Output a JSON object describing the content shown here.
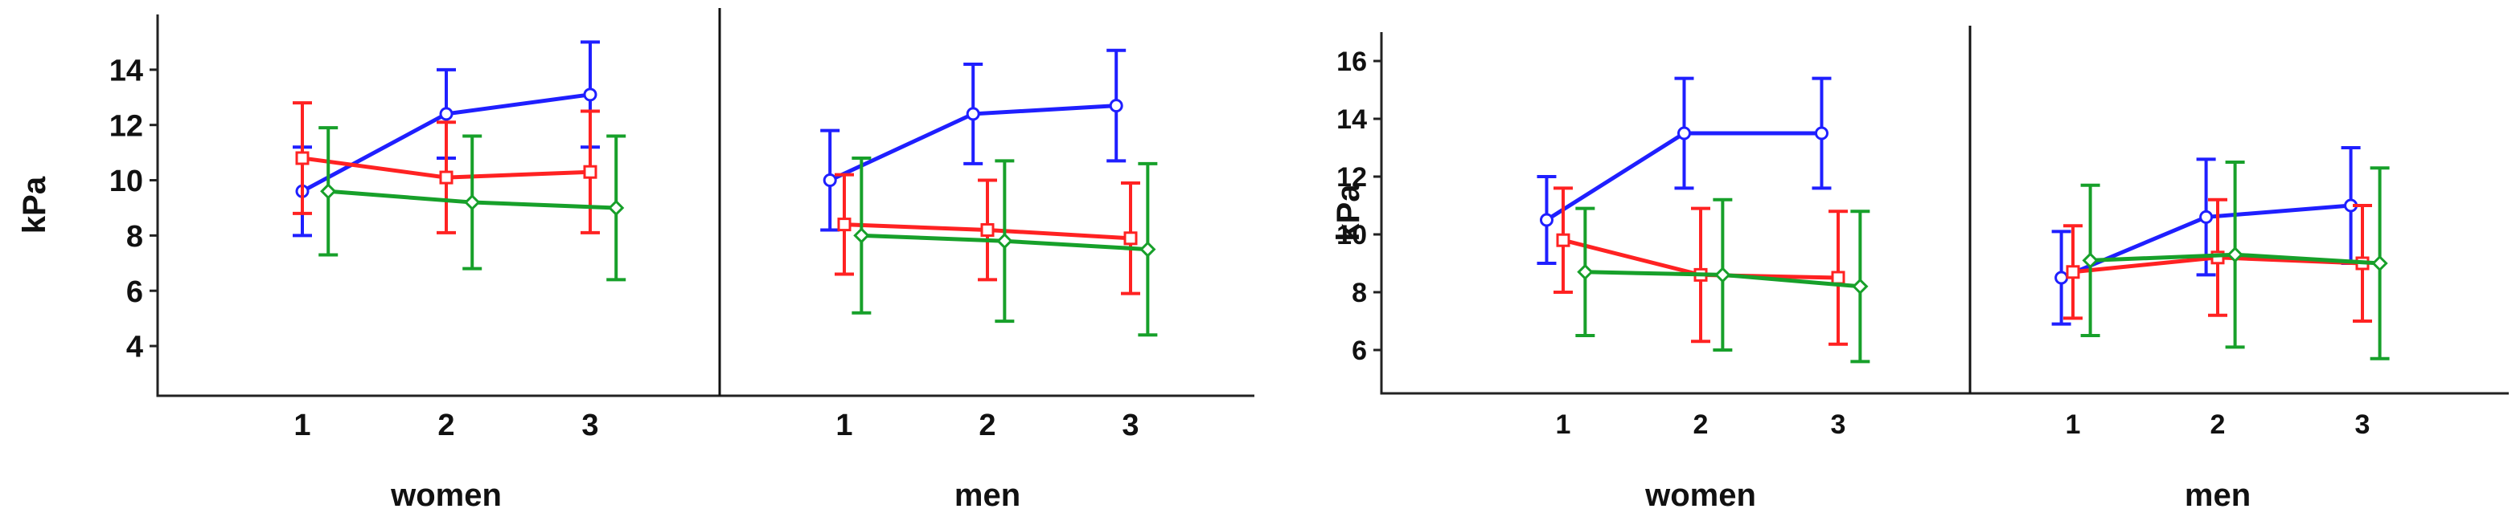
{
  "chart_data": [
    {
      "type": "line",
      "ylabel": "kPa",
      "ylim": [
        2.2,
        16.0
      ],
      "yticks": [
        4,
        6,
        8,
        10,
        12,
        14
      ],
      "grid": false,
      "legend": "none",
      "x": [
        "1",
        "2",
        "3"
      ],
      "panels": [
        {
          "label": "women",
          "series": [
            {
              "color": "#1f1fff",
              "values": [
                9.6,
                12.4,
                13.1
              ],
              "err": [
                1.6,
                1.6,
                1.9
              ],
              "x_offset": 0.0
            },
            {
              "color": "#ff2222",
              "values": [
                10.8,
                10.1,
                10.3
              ],
              "err": [
                2.0,
                2.0,
                2.2
              ],
              "x_offset": 0.0
            },
            {
              "color": "#17a02a",
              "values": [
                9.6,
                9.2,
                9.0
              ],
              "err": [
                2.3,
                2.4,
                2.6
              ],
              "x_offset": 0.18
            }
          ]
        },
        {
          "label": "men",
          "series": [
            {
              "color": "#1f1fff",
              "values": [
                10.0,
                12.4,
                12.7
              ],
              "err": [
                1.8,
                1.8,
                2.0
              ],
              "x_offset": -0.1
            },
            {
              "color": "#ff2222",
              "values": [
                8.4,
                8.2,
                7.9
              ],
              "err": [
                1.8,
                1.8,
                2.0
              ],
              "x_offset": 0.0
            },
            {
              "color": "#17a02a",
              "values": [
                8.0,
                7.8,
                7.5
              ],
              "err": [
                2.8,
                2.9,
                3.1
              ],
              "x_offset": 0.12
            }
          ]
        }
      ]
    },
    {
      "type": "line",
      "ylabel": "kPa",
      "ylim": [
        4.5,
        17.0
      ],
      "yticks": [
        6,
        8,
        10,
        12,
        14,
        16
      ],
      "grid": false,
      "legend": "none",
      "x": [
        "1",
        "2",
        "3"
      ],
      "panels": [
        {
          "label": "women",
          "series": [
            {
              "color": "#1f1fff",
              "values": [
                10.5,
                13.5,
                13.5
              ],
              "err": [
                1.5,
                1.9,
                1.9
              ],
              "x_offset": -0.12
            },
            {
              "color": "#ff2222",
              "values": [
                9.8,
                8.6,
                8.5
              ],
              "err": [
                1.8,
                2.3,
                2.3
              ],
              "x_offset": 0.0
            },
            {
              "color": "#17a02a",
              "values": [
                8.7,
                8.6,
                8.2
              ],
              "err": [
                2.2,
                2.6,
                2.6
              ],
              "x_offset": 0.16
            }
          ]
        },
        {
          "label": "men",
          "series": [
            {
              "color": "#1f1fff",
              "values": [
                8.5,
                10.6,
                11.0
              ],
              "err": [
                1.6,
                2.0,
                2.0
              ],
              "x_offset": -0.08
            },
            {
              "color": "#ff2222",
              "values": [
                8.7,
                9.2,
                9.0
              ],
              "err": [
                1.6,
                2.0,
                2.0
              ],
              "x_offset": 0.0
            },
            {
              "color": "#17a02a",
              "values": [
                9.1,
                9.3,
                9.0
              ],
              "err": [
                2.6,
                3.2,
                3.3
              ],
              "x_offset": 0.12
            }
          ]
        }
      ]
    }
  ]
}
